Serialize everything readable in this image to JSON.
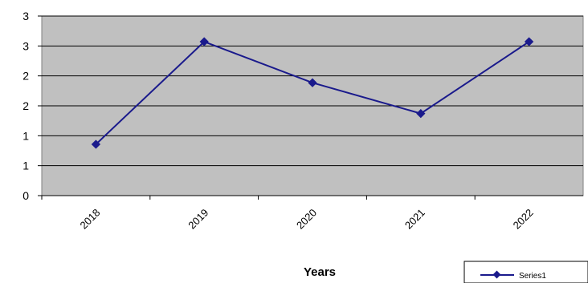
{
  "chart_data": {
    "type": "line",
    "categories": [
      "2018",
      "2019",
      "2020",
      "2021",
      "2022"
    ],
    "series": [
      {
        "name": "Series1",
        "values": [
          1.0,
          3.0,
          2.2,
          1.6,
          3.0
        ]
      }
    ],
    "y_tick_labels": [
      "0",
      "1",
      "1",
      "2",
      "2",
      "3",
      "3"
    ],
    "xlabel": "Years",
    "ylabel": "",
    "ylim": [
      0,
      3.5
    ],
    "grid": true,
    "legend_position": "bottom-right",
    "colors": {
      "series": "#1a1a8c",
      "plot_background": "#c0c0c0",
      "gridline": "#000000"
    }
  }
}
